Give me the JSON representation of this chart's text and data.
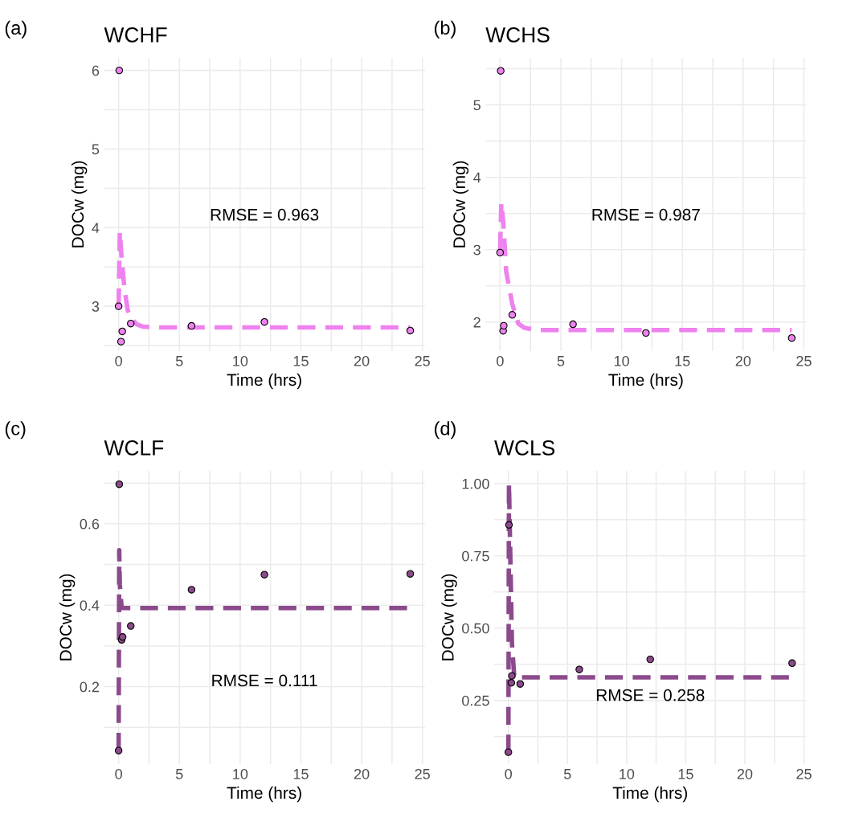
{
  "chart_data": [
    {
      "type": "scatter",
      "title": "WCHF",
      "xlabel": "Time (hrs)",
      "ylabel": "DOCw (mg)",
      "annotations": [
        "(a)",
        "RMSE = 0.963"
      ],
      "xlim": [
        -1.2,
        25.2
      ],
      "ylim": [
        2.43,
        6.16
      ],
      "xticks": [
        0,
        {
          "value": 2.5,
          "label": null
        },
        5,
        {
          "value": 7.5,
          "label": null
        },
        10,
        {
          "value": 12.5,
          "label": null
        },
        15,
        {
          "value": 17.5,
          "label": null
        },
        20,
        {
          "value": 22.5,
          "label": null
        },
        25
      ],
      "yticks": [
        {
          "value": 2.5,
          "label": null
        },
        3,
        {
          "value": 3.5,
          "label": null
        },
        4,
        {
          "value": 4.5,
          "label": null
        },
        5,
        {
          "value": 5.5,
          "label": null
        },
        6
      ],
      "grid": true,
      "marker": "circle",
      "series": [
        {
          "color": "#ee82ee",
          "x": [
            0.05,
            0,
            0.2,
            0.3,
            1,
            6,
            12,
            24
          ],
          "values": [
            6.0,
            3.0,
            2.55,
            2.68,
            2.78,
            2.75,
            2.8,
            2.69
          ]
        },
        {
          "type": "line",
          "color": "#ee82ee",
          "line_style": "dashed",
          "marker": "none",
          "x": [
            0,
            0.1,
            0.25,
            0.5,
            0.75,
            1,
            1.5,
            2,
            3,
            24
          ],
          "values": [
            3.0,
            3.95,
            3.6,
            3.2,
            2.95,
            2.85,
            2.77,
            2.74,
            2.73,
            2.73
          ]
        }
      ]
    },
    {
      "type": "scatter",
      "title": "WCHS",
      "xlabel": "Time (hrs)",
      "ylabel": "DOCw (mg)",
      "annotations": [
        "(b)",
        "RMSE = 0.987"
      ],
      "xlim": [
        -1.2,
        25.2
      ],
      "ylim": [
        1.6,
        5.65
      ],
      "xticks": [
        0,
        {
          "value": 2.5,
          "label": null
        },
        5,
        {
          "value": 7.5,
          "label": null
        },
        10,
        {
          "value": 12.5,
          "label": null
        },
        15,
        {
          "value": 17.5,
          "label": null
        },
        20,
        {
          "value": 22.5,
          "label": null
        },
        25
      ],
      "yticks": [
        2,
        {
          "value": 2.5,
          "label": null
        },
        3,
        {
          "value": 3.5,
          "label": null
        },
        4,
        {
          "value": 4.5,
          "label": null
        },
        5,
        {
          "value": 5.5,
          "label": null
        }
      ],
      "grid": true,
      "marker": "circle",
      "series": [
        {
          "color": "#ee82ee",
          "x": [
            0.05,
            0,
            0.25,
            0.3,
            1,
            6,
            12,
            24
          ],
          "values": [
            5.47,
            2.96,
            1.88,
            1.95,
            2.1,
            1.97,
            1.85,
            1.78
          ]
        },
        {
          "type": "line",
          "color": "#ee82ee",
          "line_style": "dashed",
          "marker": "none",
          "x": [
            0,
            0.1,
            0.25,
            0.5,
            1,
            1.5,
            2,
            3,
            24
          ],
          "values": [
            3.0,
            3.65,
            3.4,
            2.7,
            2.25,
            1.98,
            1.92,
            1.89,
            1.89
          ]
        }
      ]
    },
    {
      "type": "scatter",
      "title": "WCLF",
      "xlabel": "Time (hrs)",
      "ylabel": "DOCw (mg)",
      "annotations": [
        "(c)",
        "RMSE = 0.111"
      ],
      "xlim": [
        -1.2,
        25.2
      ],
      "ylim": [
        0.01,
        0.73
      ],
      "xticks": [
        0,
        {
          "value": 2.5,
          "label": null
        },
        5,
        {
          "value": 7.5,
          "label": null
        },
        10,
        {
          "value": 12.5,
          "label": null
        },
        15,
        {
          "value": 17.5,
          "label": null
        },
        20,
        {
          "value": 22.5,
          "label": null
        },
        25
      ],
      "yticks": [
        {
          "value": 0.1,
          "label": null
        },
        0.2,
        {
          "value": 0.3,
          "label": null
        },
        0.4,
        {
          "value": 0.5,
          "label": null
        },
        0.6,
        {
          "value": 0.7,
          "label": null
        }
      ],
      "grid": true,
      "marker": "circle",
      "series": [
        {
          "color": "#8b4a8b",
          "x": [
            0.05,
            0,
            0.25,
            0.33,
            1,
            6,
            12,
            24
          ],
          "values": [
            0.697,
            0.043,
            0.315,
            0.322,
            0.349,
            0.438,
            0.475,
            0.477
          ]
        },
        {
          "type": "line",
          "color": "#8b4a8b",
          "line_style": "dashed",
          "marker": "none",
          "x": [
            0,
            0.05,
            0.1,
            0.25,
            1,
            24
          ],
          "values": [
            0.043,
            0.535,
            0.45,
            0.393,
            0.393,
            0.393
          ]
        }
      ]
    },
    {
      "type": "scatter",
      "title": "WCLS",
      "xlabel": "Time (hrs)",
      "ylabel": "DOCw (mg)",
      "annotations": [
        "(d)",
        "RMSE = 0.258"
      ],
      "xlim": [
        -1.2,
        25.2
      ],
      "ylim": [
        0.03,
        1.044
      ],
      "xticks": [
        0,
        {
          "value": 2.5,
          "label": null
        },
        5,
        {
          "value": 7.5,
          "label": null
        },
        10,
        {
          "value": 12.5,
          "label": null
        },
        15,
        {
          "value": 17.5,
          "label": null
        },
        20,
        {
          "value": 22.5,
          "label": null
        },
        25
      ],
      "yticks": [
        {
          "value": 0.125,
          "label": null
        },
        {
          "value": 0.25,
          "label": "0.25"
        },
        {
          "value": 0.375,
          "label": null
        },
        {
          "value": 0.5,
          "label": "0.50"
        },
        {
          "value": 0.625,
          "label": null
        },
        {
          "value": 0.75,
          "label": "0.75"
        },
        {
          "value": 0.875,
          "label": null
        },
        {
          "value": 1.0,
          "label": "1.00"
        }
      ],
      "grid": true,
      "marker": "circle",
      "series": [
        {
          "color": "#8b4a8b",
          "x": [
            0.05,
            0,
            0.3,
            0.25,
            1,
            6,
            12,
            24
          ],
          "values": [
            0.857,
            0.071,
            0.335,
            0.311,
            0.307,
            0.357,
            0.392,
            0.379
          ]
        },
        {
          "type": "line",
          "color": "#8b4a8b",
          "line_style": "dashed",
          "marker": "none",
          "x": [
            0,
            0.05,
            0.3,
            0.5,
            24
          ],
          "values": [
            0.07,
            1.0,
            0.45,
            0.33,
            0.33
          ]
        }
      ]
    }
  ]
}
